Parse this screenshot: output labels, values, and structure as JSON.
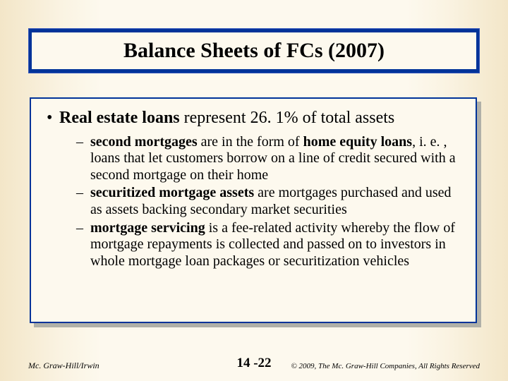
{
  "title": "Balance Sheets of FCs (2007)",
  "main_bullet": {
    "bold": "Real estate loans",
    "rest": " represent 26. 1% of total assets"
  },
  "sub_bullets": [
    {
      "b1": "second mortgages",
      "t1": " are in the form of ",
      "b2": "home equity loans",
      "t2": ", i. e. , loans that let customers borrow on a line of credit secured with a second mortgage on their home"
    },
    {
      "b1": "securitized mortgage assets",
      "t1": " are mortgages purchased and used as assets backing secondary market securities"
    },
    {
      "b1": "mortgage servicing",
      "t1": " is a fee-related activity whereby the flow of mortgage repayments is collected and passed on to investors in whole mortgage loan packages or securitization vehicles"
    }
  ],
  "footer": {
    "left": "Mc. Graw-Hill/Irwin",
    "center": "14 -22",
    "right": "© 2009, The Mc. Graw-Hill Companies, All Rights Reserved"
  },
  "colors": {
    "title_bar": "#003399",
    "slide_bg": "#fdf9ee",
    "shadow": "#b0b0a8"
  }
}
